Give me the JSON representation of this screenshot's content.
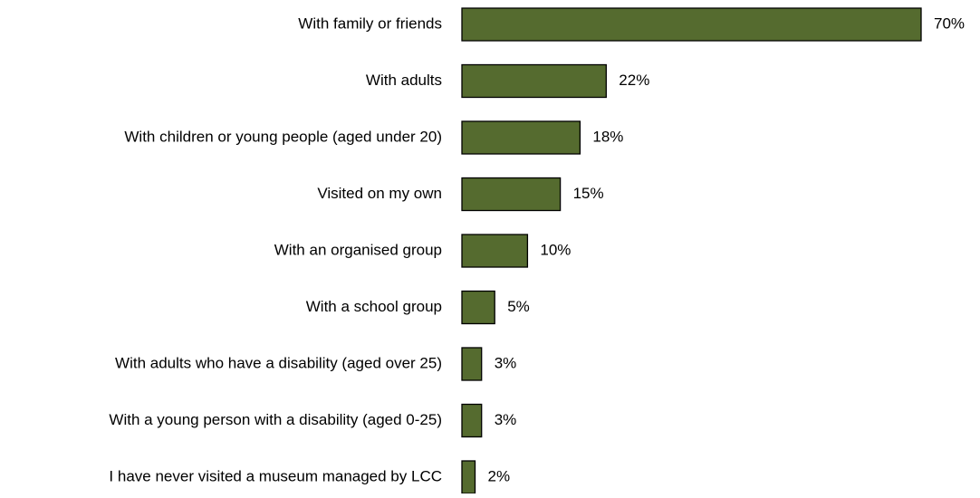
{
  "chart_data": {
    "type": "bar",
    "orientation": "horizontal",
    "title": "",
    "xlabel": "",
    "ylabel": "",
    "xlim": [
      0,
      70
    ],
    "grid": false,
    "legend": "none",
    "bar_color": "#556b2f",
    "bar_edge_color": "#000000",
    "categories": [
      "With family or friends",
      "With adults",
      "With children or young people (aged under 20)",
      "Visited on my own",
      "With an organised group",
      "With a school group",
      "With adults who have a disability (aged over 25)",
      "With a young person with a disability (aged 0-25)",
      "I have never visited a museum managed by LCC"
    ],
    "values": [
      70,
      22,
      18,
      15,
      10,
      5,
      3,
      3,
      2
    ],
    "value_labels": [
      "70%",
      "22%",
      "18%",
      "15%",
      "10%",
      "5%",
      "3%",
      "3%",
      "2%"
    ]
  }
}
